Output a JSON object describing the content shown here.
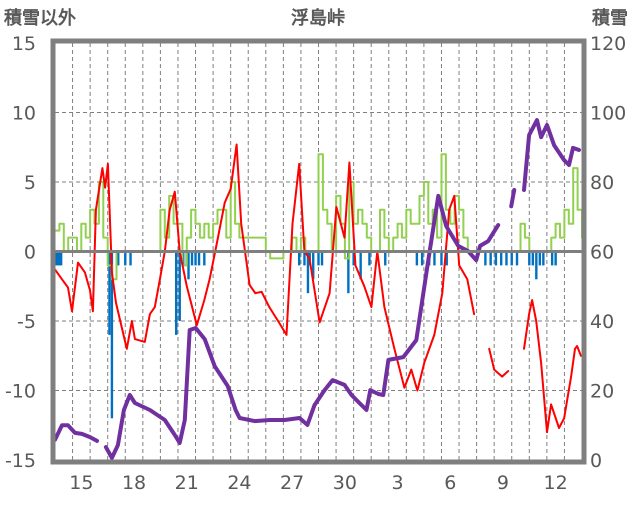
{
  "chart_data": {
    "type": "line",
    "title": "浮島峠",
    "ylabel_left": "積雪以外",
    "ylabel_right": "積雪",
    "ylim_left": [
      -15,
      15
    ],
    "ylim_right": [
      0,
      120
    ],
    "left_ticks": [
      "15",
      "10",
      "5",
      "0",
      "-5",
      "-10",
      "-15"
    ],
    "left_tick_values": [
      15,
      10,
      5,
      0,
      -5,
      -10,
      -15
    ],
    "right_ticks": [
      "120",
      "100",
      "80",
      "60",
      "40",
      "20",
      "0"
    ],
    "right_tick_values": [
      120,
      100,
      80,
      60,
      40,
      20,
      0
    ],
    "x_range_days": [
      0,
      30
    ],
    "x_ticks": [
      {
        "day": 1,
        "label": "15"
      },
      {
        "day": 4,
        "label": "18"
      },
      {
        "day": 7,
        "label": "21"
      },
      {
        "day": 10,
        "label": "24"
      },
      {
        "day": 13,
        "label": "27"
      },
      {
        "day": 16,
        "label": "30"
      },
      {
        "day": 19,
        "label": "3"
      },
      {
        "day": 22,
        "label": "6"
      },
      {
        "day": 25,
        "label": "9"
      },
      {
        "day": 28,
        "label": "12"
      }
    ],
    "grid": "dashed",
    "colors": {
      "temp": "#ff0000",
      "green": "#92d050",
      "bars": "#0070c0",
      "snow": "#7030a0",
      "frame": "#7f7f7f"
    },
    "series": [
      {
        "name": "red",
        "axis": "left",
        "points": [
          [
            0,
            -1.3
          ],
          [
            0.4,
            -2
          ],
          [
            0.74,
            -2.6
          ],
          [
            0.97,
            -4.3
          ],
          [
            1.31,
            -0.8
          ],
          [
            1.7,
            -1.5
          ],
          [
            1.99,
            -2.8
          ],
          [
            2.16,
            -4.3
          ],
          [
            2.33,
            3
          ],
          [
            2.7,
            6
          ],
          [
            2.85,
            4.6
          ],
          [
            3.01,
            6.3
          ],
          [
            3.24,
            -1.5
          ],
          [
            3.47,
            -3.7
          ],
          [
            3.81,
            -5.5
          ],
          [
            4.09,
            -7
          ],
          [
            4.38,
            -5
          ],
          [
            4.55,
            -6.3
          ],
          [
            5.11,
            -6.5
          ],
          [
            5.4,
            -4.5
          ],
          [
            5.68,
            -4
          ],
          [
            5.97,
            -2
          ],
          [
            6.25,
            0
          ],
          [
            6.53,
            3
          ],
          [
            6.82,
            4.3
          ],
          [
            7.1,
            0
          ],
          [
            7.5,
            -2.5
          ],
          [
            8.07,
            -5.3
          ],
          [
            8.5,
            -3.5
          ],
          [
            8.8,
            -2
          ],
          [
            9.2,
            0.5
          ],
          [
            9.66,
            3.5
          ],
          [
            10,
            4.5
          ],
          [
            10.34,
            7.7
          ],
          [
            10.6,
            2
          ],
          [
            11.08,
            -2.4
          ],
          [
            11.4,
            -3
          ],
          [
            11.76,
            -2.9
          ],
          [
            12.2,
            -4
          ],
          [
            12.7,
            -5
          ],
          [
            13.18,
            -6
          ],
          [
            13.52,
            2
          ],
          [
            13.9,
            6.3
          ],
          [
            14.2,
            0
          ],
          [
            14.49,
            -0.5
          ],
          [
            15.06,
            -5.1
          ],
          [
            15.63,
            -3
          ],
          [
            16.02,
            3.2
          ],
          [
            16.48,
            1
          ],
          [
            16.76,
            6.4
          ],
          [
            17.1,
            -1
          ],
          [
            17.61,
            -2.5
          ],
          [
            18.01,
            -4
          ],
          [
            18.35,
            0
          ],
          [
            18.75,
            -4
          ],
          [
            19.32,
            -7
          ],
          [
            19.89,
            -9.8
          ],
          [
            20.28,
            -8.5
          ],
          [
            20.63,
            -10
          ],
          [
            21.02,
            -8
          ],
          [
            21.59,
            -6
          ],
          [
            22.05,
            -3
          ],
          [
            22.44,
            3
          ],
          [
            22.73,
            4
          ],
          [
            23.01,
            -1
          ],
          [
            23.47,
            -2
          ],
          [
            23.86,
            -4.5
          ],
          [
            23.9,
            null
          ],
          [
            24.72,
            -7
          ],
          [
            25,
            -8.5
          ],
          [
            25.45,
            -9
          ],
          [
            25.8,
            -8.6
          ],
          [
            26,
            null
          ],
          [
            26.7,
            -7
          ],
          [
            26.99,
            -4.5
          ],
          [
            27.16,
            -3.5
          ],
          [
            27.39,
            -5
          ],
          [
            27.67,
            -8
          ],
          [
            28.01,
            -13
          ],
          [
            28.24,
            -11
          ],
          [
            28.69,
            -12.7
          ],
          [
            28.98,
            -12
          ],
          [
            29.38,
            -9
          ],
          [
            29.6,
            -7
          ],
          [
            29.72,
            -6.8
          ],
          [
            29.94,
            -7.5
          ]
        ]
      },
      {
        "name": "green",
        "axis": "left",
        "points": [
          [
            0,
            1.5
          ],
          [
            0.25,
            2
          ],
          [
            0.5,
            0
          ],
          [
            0.75,
            1
          ],
          [
            1,
            1
          ],
          [
            1.25,
            0
          ],
          [
            1.5,
            2
          ],
          [
            1.75,
            1
          ],
          [
            2,
            3
          ],
          [
            2.25,
            2
          ],
          [
            2.5,
            5
          ],
          [
            2.75,
            1
          ],
          [
            3,
            -1
          ],
          [
            3.25,
            -2
          ],
          [
            3.5,
            0
          ],
          [
            4,
            0
          ],
          [
            4.5,
            0
          ],
          [
            5,
            0
          ],
          [
            5.5,
            0
          ],
          [
            6,
            3
          ],
          [
            6.25,
            1
          ],
          [
            6.5,
            4
          ],
          [
            6.75,
            2
          ],
          [
            7,
            2
          ],
          [
            7.25,
            -1
          ],
          [
            7.5,
            1
          ],
          [
            7.75,
            3
          ],
          [
            8,
            2
          ],
          [
            8.25,
            1
          ],
          [
            8.5,
            2
          ],
          [
            8.75,
            1
          ],
          [
            9,
            2
          ],
          [
            9.25,
            3
          ],
          [
            9.5,
            3
          ],
          [
            9.75,
            1
          ],
          [
            10,
            5
          ],
          [
            10.25,
            2
          ],
          [
            10.5,
            1
          ],
          [
            11,
            1
          ],
          [
            11.5,
            1
          ],
          [
            12,
            0
          ],
          [
            12.25,
            -0.5
          ],
          [
            12.75,
            -0.5
          ],
          [
            13,
            0
          ],
          [
            13.5,
            1
          ],
          [
            13.75,
            0
          ],
          [
            14,
            1
          ],
          [
            14.25,
            0
          ],
          [
            14.5,
            0
          ],
          [
            15,
            7
          ],
          [
            15.25,
            3
          ],
          [
            15.5,
            2
          ],
          [
            15.75,
            0
          ],
          [
            16,
            4
          ],
          [
            16.25,
            2
          ],
          [
            16.5,
            -0.5
          ],
          [
            16.75,
            5
          ],
          [
            17,
            2
          ],
          [
            17.25,
            3
          ],
          [
            17.5,
            2
          ],
          [
            17.75,
            1
          ],
          [
            18,
            0
          ],
          [
            18.5,
            3
          ],
          [
            18.75,
            1
          ],
          [
            19,
            0
          ],
          [
            19.25,
            1
          ],
          [
            19.5,
            2
          ],
          [
            19.75,
            1
          ],
          [
            20,
            3
          ],
          [
            20.25,
            2
          ],
          [
            20.5,
            2
          ],
          [
            20.75,
            4
          ],
          [
            21,
            5
          ],
          [
            21.25,
            2
          ],
          [
            21.5,
            3
          ],
          [
            21.75,
            1
          ],
          [
            22,
            7
          ],
          [
            22.25,
            3
          ],
          [
            22.5,
            2
          ],
          [
            22.75,
            4
          ],
          [
            23,
            3
          ],
          [
            23.25,
            1
          ],
          [
            23.5,
            0
          ],
          [
            24,
            0
          ],
          [
            24.5,
            0
          ],
          [
            25,
            0
          ],
          [
            25.5,
            0
          ],
          [
            26,
            0
          ],
          [
            26.5,
            2
          ],
          [
            26.75,
            1
          ],
          [
            27,
            0
          ],
          [
            27.5,
            0
          ],
          [
            28,
            0
          ],
          [
            28.25,
            1
          ],
          [
            28.5,
            2
          ],
          [
            28.75,
            1
          ],
          [
            29,
            3
          ],
          [
            29.25,
            2
          ],
          [
            29.5,
            6
          ],
          [
            29.75,
            3
          ],
          [
            30,
            1
          ]
        ]
      },
      {
        "name": "purple",
        "axis": "right",
        "points": [
          [
            0,
            5.8
          ],
          [
            0.4,
            10
          ],
          [
            0.74,
            10
          ],
          [
            1.14,
            7.8
          ],
          [
            1.53,
            7.5
          ],
          [
            1.99,
            6.6
          ],
          [
            2.39,
            5.5
          ],
          [
            2.5,
            null
          ],
          [
            2.9,
            3.7
          ],
          [
            3.24,
            0.6
          ],
          [
            3.58,
            4.3
          ],
          [
            3.92,
            14.4
          ],
          [
            4.26,
            18.7
          ],
          [
            4.55,
            16.4
          ],
          [
            5.4,
            14.4
          ],
          [
            6.25,
            11.5
          ],
          [
            6.82,
            7.2
          ],
          [
            7.1,
            4.9
          ],
          [
            7.39,
            11.5
          ],
          [
            7.67,
            37.4
          ],
          [
            8.01,
            38
          ],
          [
            8.52,
            34.8
          ],
          [
            9.09,
            27
          ],
          [
            9.83,
            21.3
          ],
          [
            10.28,
            14.4
          ],
          [
            10.51,
            12.1
          ],
          [
            11.36,
            11.2
          ],
          [
            12.22,
            11.5
          ],
          [
            13.07,
            11.5
          ],
          [
            13.92,
            12.1
          ],
          [
            14.37,
            10.1
          ],
          [
            14.77,
            15.8
          ],
          [
            15.34,
            20.1
          ],
          [
            15.8,
            23
          ],
          [
            16.48,
            21.6
          ],
          [
            16.88,
            18.7
          ],
          [
            17.27,
            16.7
          ],
          [
            17.73,
            14.4
          ],
          [
            17.95,
            20.1
          ],
          [
            18.41,
            19
          ],
          [
            18.69,
            18.7
          ],
          [
            18.98,
            28.8
          ],
          [
            19.83,
            29.6
          ],
          [
            20.57,
            34.5
          ],
          [
            21.25,
            57.5
          ],
          [
            21.82,
            76
          ],
          [
            22.27,
            67.3
          ],
          [
            22.95,
            61.6
          ],
          [
            23.52,
            60.1
          ],
          [
            23.98,
            57.5
          ],
          [
            24.2,
            61.6
          ],
          [
            24.66,
            63
          ],
          [
            25.23,
            67.6
          ],
          [
            25.5,
            null
          ],
          [
            25.97,
            73
          ],
          [
            26.14,
            77.7
          ],
          [
            26.3,
            null
          ],
          [
            26.7,
            77.7
          ],
          [
            26.99,
            93.5
          ],
          [
            27.44,
            97.8
          ],
          [
            27.67,
            92.9
          ],
          [
            28.01,
            96.4
          ],
          [
            28.41,
            90.6
          ],
          [
            28.98,
            86.3
          ],
          [
            29.26,
            84.9
          ],
          [
            29.49,
            89.8
          ],
          [
            29.83,
            89.2
          ]
        ]
      },
      {
        "name": "blue-bars",
        "axis": "left",
        "type": "bar",
        "points": [
          [
            0.05,
            -1
          ],
          [
            0.15,
            -1
          ],
          [
            0.25,
            -1
          ],
          [
            0.35,
            -1
          ],
          [
            3.1,
            -6
          ],
          [
            3.24,
            -12
          ],
          [
            3.6,
            -1
          ],
          [
            4.0,
            -1
          ],
          [
            4.3,
            -1
          ],
          [
            6.9,
            -6
          ],
          [
            7.1,
            -5
          ],
          [
            7.3,
            -1
          ],
          [
            7.5,
            -1
          ],
          [
            7.6,
            -2
          ],
          [
            7.8,
            -1
          ],
          [
            8.0,
            -1
          ],
          [
            8.2,
            -1
          ],
          [
            8.5,
            -1
          ],
          [
            13.9,
            -1
          ],
          [
            14.2,
            -1
          ],
          [
            14.4,
            -3
          ],
          [
            14.5,
            -1
          ],
          [
            14.7,
            -2
          ],
          [
            15.0,
            -1
          ],
          [
            15.2,
            -1
          ],
          [
            16.7,
            -3
          ],
          [
            17.0,
            -1
          ],
          [
            17.4,
            -2
          ],
          [
            17.9,
            -1
          ],
          [
            18.8,
            -1
          ],
          [
            20.6,
            -1
          ],
          [
            20.9,
            -1
          ],
          [
            21.3,
            -1
          ],
          [
            21.6,
            -1
          ],
          [
            22.0,
            -1
          ],
          [
            22.3,
            -1
          ],
          [
            24.5,
            -1
          ],
          [
            24.8,
            -1
          ],
          [
            25.1,
            -1
          ],
          [
            25.4,
            -1
          ],
          [
            25.7,
            -1
          ],
          [
            26.0,
            -1
          ],
          [
            26.3,
            -1
          ],
          [
            27.0,
            -1
          ],
          [
            27.2,
            -1
          ],
          [
            27.4,
            -2
          ],
          [
            27.6,
            -1
          ],
          [
            27.8,
            -1
          ],
          [
            28.3,
            -1
          ],
          [
            28.5,
            -1
          ]
        ]
      }
    ]
  }
}
